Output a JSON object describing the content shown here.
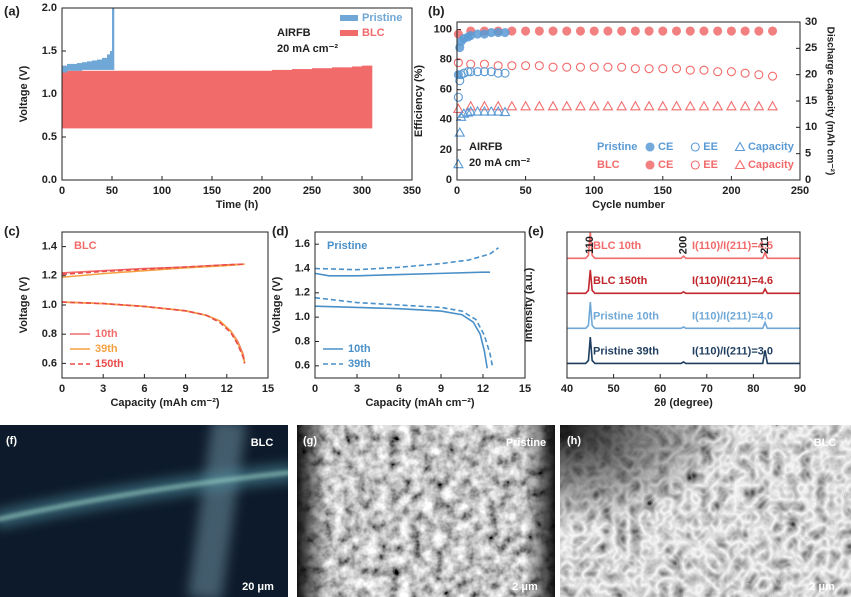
{
  "chart_data": [
    {
      "type": "band",
      "panel": "(a)",
      "xlabel": "Time (h)",
      "ylabel": "Voltage (V)",
      "xlim": [
        0,
        350
      ],
      "xticks": [
        0,
        50,
        100,
        150,
        200,
        250,
        300,
        350
      ],
      "ylim": [
        0,
        2.0
      ],
      "yticks": [
        {
          "value": 0,
          "label": "0.0"
        },
        0.5,
        {
          "value": 1,
          "label": "1.0"
        },
        1.5,
        {
          "value": 2,
          "label": "2.0"
        }
      ],
      "annotations": [
        "AIRFB",
        "20 mA cm⁻²"
      ],
      "legend": "upper right",
      "series": [
        {
          "name": "BLC",
          "color": "#f26b6b",
          "x": [
            0,
            10,
            20,
            30,
            40,
            50,
            60,
            70,
            80,
            90,
            100,
            110,
            120,
            130,
            140,
            150,
            160,
            170,
            180,
            190,
            200,
            210,
            220,
            230,
            240,
            250,
            260,
            270,
            280,
            290,
            300,
            305
          ],
          "lower": [
            0.6,
            0.6,
            0.6,
            0.6,
            0.6,
            0.6,
            0.6,
            0.6,
            0.6,
            0.6,
            0.6,
            0.6,
            0.6,
            0.6,
            0.6,
            0.6,
            0.6,
            0.6,
            0.6,
            0.6,
            0.6,
            0.6,
            0.6,
            0.6,
            0.6,
            0.6,
            0.6,
            0.6,
            0.6,
            0.6,
            0.6,
            0.6
          ],
          "upper": [
            1.27,
            1.27,
            1.27,
            1.27,
            1.27,
            1.27,
            1.27,
            1.27,
            1.27,
            1.27,
            1.27,
            1.27,
            1.27,
            1.27,
            1.27,
            1.27,
            1.27,
            1.27,
            1.27,
            1.27,
            1.27,
            1.28,
            1.28,
            1.29,
            1.29,
            1.3,
            1.3,
            1.31,
            1.31,
            1.32,
            1.33,
            1.33
          ]
        },
        {
          "name": "Pristine",
          "color": "#6fa8d6",
          "x": [
            0,
            5,
            10,
            15,
            20,
            25,
            30,
            35,
            40,
            45,
            48,
            50
          ],
          "lower": [
            1.25,
            1.27,
            1.27,
            1.27,
            1.28,
            1.28,
            1.28,
            1.28,
            1.28,
            1.28,
            1.28,
            1.28
          ],
          "upper": [
            1.33,
            1.35,
            1.35,
            1.36,
            1.37,
            1.38,
            1.39,
            1.4,
            1.42,
            1.46,
            1.5,
            2.0
          ]
        }
      ]
    },
    {
      "type": "scatter",
      "panel": "(b)",
      "xlabel": "Cycle number",
      "ylabel": "Efficiency (%)",
      "y2label": "Discharge capacity (mAh cm⁻²)",
      "xlim": [
        0,
        250
      ],
      "xticks": [
        0,
        50,
        100,
        150,
        200,
        250
      ],
      "ylim": [
        0,
        105
      ],
      "yticks": [
        0,
        20,
        40,
        60,
        80,
        100
      ],
      "y2lim": [
        0,
        30
      ],
      "y2ticks": [
        0,
        5,
        10,
        15,
        20,
        25,
        30
      ],
      "annotations": [
        "AIRFB",
        "20 mA cm⁻²"
      ],
      "legend": "lower right",
      "groups": [
        {
          "name": "BLC",
          "color": "#f26b6b",
          "series": [
            {
              "name": "CE",
              "marker": "filled-circle",
              "x": [
                1,
                10,
                20,
                30,
                40,
                50,
                60,
                70,
                80,
                90,
                100,
                110,
                120,
                130,
                140,
                150,
                160,
                170,
                180,
                190,
                200,
                210,
                220,
                230
              ],
              "values": [
                97,
                99,
                99,
                99,
                99,
                99,
                99,
                99,
                99,
                99,
                99,
                99,
                99,
                99,
                99,
                99,
                99,
                99,
                99,
                99,
                99,
                99,
                99,
                99
              ]
            },
            {
              "name": "EE",
              "marker": "open-circle",
              "x": [
                1,
                10,
                20,
                30,
                40,
                50,
                60,
                70,
                80,
                90,
                100,
                110,
                120,
                130,
                140,
                150,
                160,
                170,
                180,
                190,
                200,
                210,
                220,
                230
              ],
              "values": [
                78,
                77,
                77,
                76,
                76,
                76,
                76,
                75,
                75,
                75,
                75,
                75,
                75,
                74,
                74,
                74,
                74,
                73,
                73,
                72,
                72,
                71,
                70,
                69
              ]
            },
            {
              "name": "Capacity",
              "marker": "open-triangle",
              "axis": "y2",
              "x": [
                1,
                10,
                20,
                30,
                40,
                50,
                60,
                70,
                80,
                90,
                100,
                110,
                120,
                130,
                140,
                150,
                160,
                170,
                180,
                190,
                200,
                210,
                220,
                230
              ],
              "values": [
                13.5,
                14,
                14,
                14,
                14,
                14,
                14,
                14,
                14,
                14,
                14,
                14,
                14,
                14,
                14,
                14,
                14,
                14,
                14,
                14,
                14,
                14,
                14,
                14
              ]
            }
          ]
        },
        {
          "name": "Pristine",
          "color": "#5b9bd5",
          "series": [
            {
              "name": "CE",
              "marker": "filled-circle",
              "x": [
                1,
                2,
                3,
                5,
                8,
                10,
                15,
                20,
                25,
                30,
                35
              ],
              "values": [
                70,
                88,
                92,
                94,
                95,
                96,
                97,
                97,
                98,
                98,
                98
              ]
            },
            {
              "name": "EE",
              "marker": "open-circle",
              "x": [
                1,
                2,
                3,
                5,
                8,
                10,
                15,
                20,
                25,
                30,
                35
              ],
              "values": [
                55,
                66,
                70,
                71,
                72,
                72,
                72,
                72,
                72,
                71,
                71
              ]
            },
            {
              "name": "Capacity",
              "marker": "open-triangle",
              "axis": "y2",
              "x": [
                1,
                2,
                3,
                5,
                8,
                10,
                15,
                20,
                25,
                30,
                35
              ],
              "values": [
                3,
                9,
                12,
                12.6,
                12.8,
                13,
                13,
                13,
                13,
                13,
                12.9
              ]
            }
          ]
        }
      ]
    },
    {
      "type": "line",
      "panel": "(c)",
      "title": "BLC",
      "xlabel": "Capacity (mAh cm⁻²)",
      "ylabel": "Voltage (V)",
      "xlim": [
        0,
        15
      ],
      "xticks": [
        0,
        3,
        6,
        9,
        12,
        15
      ],
      "ylim": [
        0.5,
        1.5
      ],
      "yticks": [
        0.6,
        0.8,
        {
          "value": 1,
          "label": "1.0"
        },
        1.2,
        1.4
      ],
      "legend": "lower left",
      "series": [
        {
          "name": "10th",
          "color": "#f26b6b",
          "dash": false,
          "x": [
            0,
            3,
            6,
            9,
            12,
            13.3,
            null,
            0,
            3,
            6,
            9,
            10.5,
            11.5,
            12.3,
            12.8,
            13.2,
            13.3
          ],
          "values": [
            1.22,
            1.235,
            1.25,
            1.26,
            1.275,
            1.28,
            null,
            1.02,
            1.01,
            0.99,
            0.96,
            0.93,
            0.89,
            0.82,
            0.75,
            0.66,
            0.6
          ]
        },
        {
          "name": "39th",
          "color": "#f5a142",
          "dash": false,
          "x": [
            0,
            3,
            6,
            9,
            12,
            13.3,
            null,
            0,
            3,
            6,
            9,
            10.5,
            11.5,
            12.3,
            12.8,
            13.2,
            13.3
          ],
          "values": [
            1.19,
            1.215,
            1.235,
            1.255,
            1.27,
            1.28,
            null,
            1.02,
            1.01,
            0.99,
            0.96,
            0.93,
            0.89,
            0.82,
            0.74,
            0.65,
            0.6
          ]
        },
        {
          "name": "150th",
          "color": "#e94b4b",
          "dash": true,
          "x": [
            0,
            3,
            6,
            9,
            12,
            13.3,
            null,
            0,
            3,
            6,
            9,
            10.5,
            11.5,
            12.3,
            12.8,
            13.2,
            13.3
          ],
          "values": [
            1.21,
            1.23,
            1.245,
            1.26,
            1.275,
            1.28,
            null,
            1.02,
            1.01,
            0.99,
            0.96,
            0.93,
            0.88,
            0.81,
            0.73,
            0.64,
            0.6
          ]
        }
      ]
    },
    {
      "type": "line",
      "panel": "(d)",
      "title": "Pristine",
      "xlabel": "Capacity (mAh cm⁻²)",
      "ylabel": "Voltage (V)",
      "xlim": [
        0,
        15
      ],
      "xticks": [
        0,
        3,
        6,
        9,
        12,
        15
      ],
      "ylim": [
        0.5,
        1.7
      ],
      "yticks": [
        0.6,
        0.8,
        {
          "value": 1,
          "label": "1.0"
        },
        1.2,
        1.4,
        1.6
      ],
      "legend": "lower left",
      "series": [
        {
          "name": "10th",
          "color": "#4a90c8",
          "dash": false,
          "x": [
            0,
            1,
            3,
            6,
            9,
            12,
            12.5,
            null,
            0,
            3,
            6,
            9,
            10.5,
            11.3,
            11.8,
            12.1,
            12.3
          ],
          "values": [
            1.36,
            1.34,
            1.34,
            1.35,
            1.36,
            1.37,
            1.37,
            null,
            1.09,
            1.08,
            1.07,
            1.05,
            1.02,
            0.96,
            0.86,
            0.72,
            0.58
          ]
        },
        {
          "name": "39th",
          "color": "#4a90c8",
          "dash": true,
          "x": [
            0,
            3,
            6,
            9,
            11,
            12.5,
            13.1,
            null,
            0,
            3,
            6,
            9,
            10.5,
            11.5,
            12.1,
            12.5,
            12.7
          ],
          "values": [
            1.4,
            1.39,
            1.41,
            1.44,
            1.47,
            1.52,
            1.57,
            null,
            1.16,
            1.12,
            1.1,
            1.08,
            1.05,
            0.98,
            0.85,
            0.7,
            0.58
          ]
        }
      ]
    },
    {
      "type": "line",
      "panel": "(e)",
      "xlabel": "2θ (degree)",
      "ylabel": "Intensity (a.u.)",
      "xlim": [
        40,
        90
      ],
      "xticks": [
        40,
        50,
        60,
        70,
        80,
        90
      ],
      "ylim": [
        0,
        100
      ],
      "peaks": [
        {
          "x": 45,
          "label": "110"
        },
        {
          "x": 65,
          "label": "200"
        },
        {
          "x": 82.5,
          "label": "211"
        }
      ],
      "x": [
        40,
        44,
        44.6,
        45,
        45.4,
        46,
        64.5,
        65,
        65.5,
        82,
        82.5,
        83,
        90
      ],
      "series": [
        {
          "name": "BLC 10th",
          "color": "#f26b6b",
          "ratio": "I(110)/I(211)=4.5",
          "values": [
            82,
            82,
            84,
            100,
            84,
            82,
            82,
            83.5,
            82,
            82,
            86,
            82,
            82
          ]
        },
        {
          "name": "BLC 150th",
          "color": "#c0262b",
          "ratio": "I(110)/I(211)=4.6",
          "values": [
            58,
            58,
            60,
            74,
            60,
            58,
            58,
            59,
            58,
            58,
            61,
            58,
            58
          ]
        },
        {
          "name": "Pristine 10th",
          "color": "#6fa8d6",
          "ratio": "I(110)/I(211)=4.0",
          "values": [
            34,
            34,
            36,
            52,
            36,
            34,
            34,
            35,
            34,
            34,
            38,
            34,
            34
          ]
        },
        {
          "name": "Pristine 39th",
          "color": "#1f3e5f",
          "ratio": "I(110)/I(211)=3.0",
          "values": [
            10,
            10,
            12,
            28,
            12,
            10,
            10,
            11,
            10,
            10,
            19,
            10,
            10
          ]
        }
      ]
    }
  ],
  "images": [
    {
      "panel": "(f)",
      "label": "BLC",
      "scale_bar": "20 μm"
    },
    {
      "panel": "(g)",
      "label": "Pristine",
      "scale_bar": "2 μm"
    },
    {
      "panel": "(h)",
      "label": "BLC",
      "scale_bar": "2 μm"
    }
  ]
}
